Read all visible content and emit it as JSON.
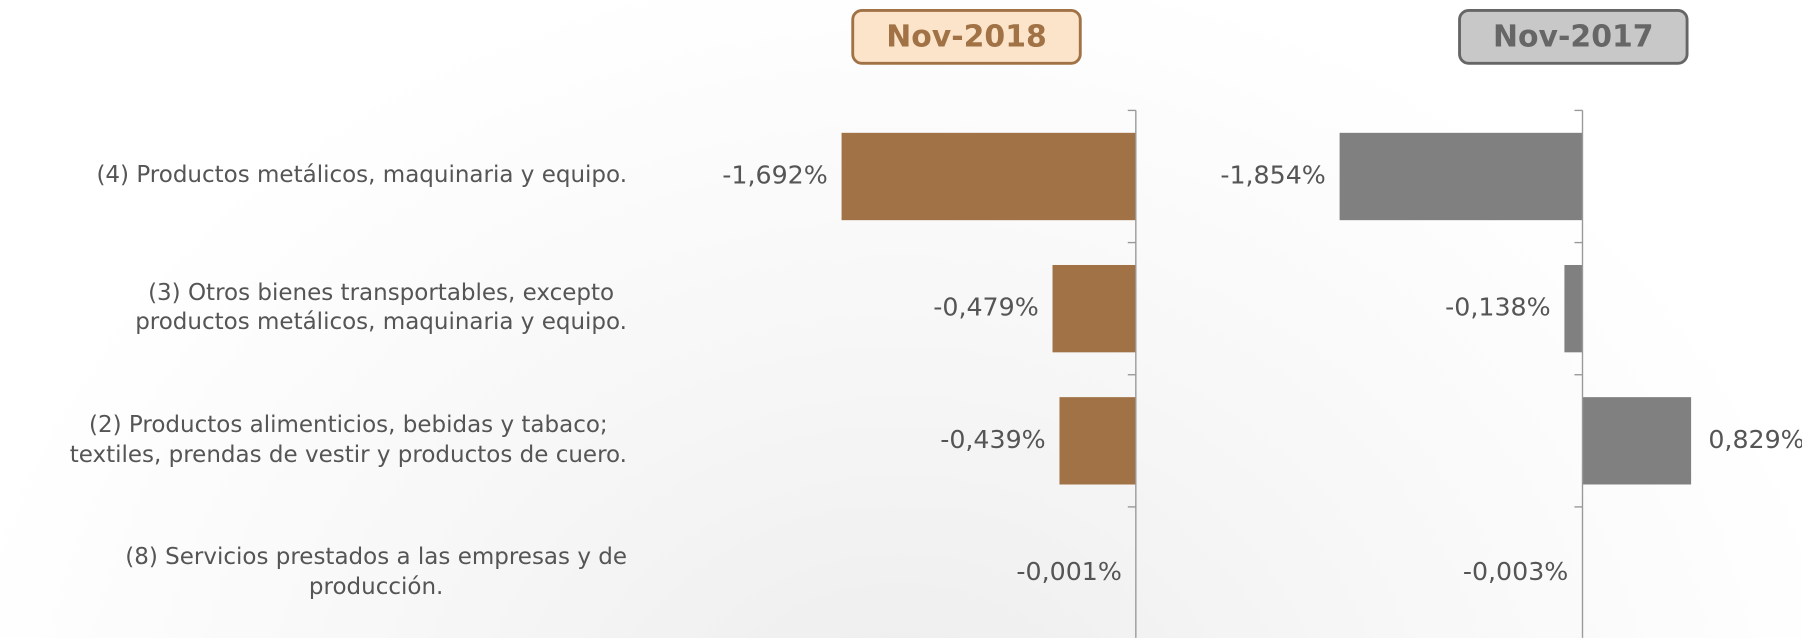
{
  "chart_data": [
    {
      "type": "bar",
      "orientation": "horizontal",
      "title": "Nov-2018",
      "categories": [
        "(4) Productos metálicos, maquinaria y equipo.",
        "(3) Otros bienes transportables, excepto\nproductos metálicos, maquinaria y equipo.",
        "(2) Productos alimenticios, bebidas y tabaco;\ntextiles, prendas de vestir y productos de cuero.",
        "(8) Servicios prestados a las empresas y de\nproducción."
      ],
      "values": [
        -1.692,
        -0.479,
        -0.439,
        -0.001
      ],
      "value_labels": [
        "-1,692%",
        "-0,479%",
        "-0,439%",
        "-0,001%"
      ],
      "color": "#a07245",
      "title_fill": "#fbe4c9",
      "title_color": "#a07245",
      "xlim": [
        -2.5,
        0.5
      ]
    },
    {
      "type": "bar",
      "orientation": "horizontal",
      "title": "Nov-2017",
      "values": [
        -1.854,
        -0.138,
        0.829,
        -0.003
      ],
      "value_labels": [
        "-1,854%",
        "-0,138%",
        "0,829%",
        "-0,003%"
      ],
      "color": "#808080",
      "title_fill": "#c8c8c8",
      "title_color": "#666666",
      "xlim": [
        -2.5,
        1.5
      ]
    }
  ]
}
